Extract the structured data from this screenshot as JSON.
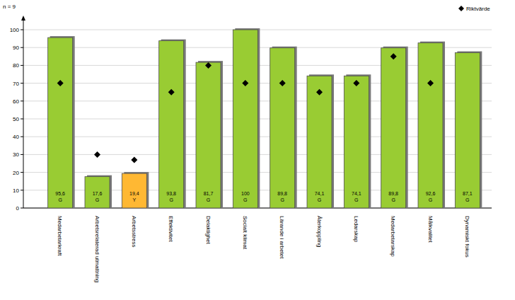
{
  "chart_data": {
    "type": "bar",
    "subtitle": "n = 9",
    "categories": [
      "Medarbetarkraft",
      "Arbetsrelaterad utmattning",
      "Arbetsstress",
      "Effektivitet",
      "Delaktighet",
      "Socialt klimat",
      "Lärande i arbetet",
      "Återkoppling",
      "Ledarskap",
      "Medarbetarskap",
      "Målkvalitet",
      "Dynamiskt fokus"
    ],
    "series": [
      {
        "type": "bar",
        "colors": [
          "#99cc33",
          "#99cc33",
          "#ffb833",
          "#99cc33",
          "#99cc33",
          "#99cc33",
          "#99cc33",
          "#99cc33",
          "#99cc33",
          "#99cc33",
          "#99cc33",
          "#99cc33"
        ],
        "values": [
          95.6,
          17.6,
          19.4,
          93.8,
          81.7,
          100,
          89.8,
          74.1,
          74.1,
          89.8,
          92.6,
          87.1
        ],
        "value_labels": [
          "95,6",
          "17,6",
          "19,4",
          "93,8",
          "81,7",
          "100",
          "89,8",
          "74,1",
          "74,1",
          "89,8",
          "92,6",
          "87,1"
        ],
        "grades": [
          "G",
          "G",
          "Y",
          "G",
          "G",
          "G",
          "G",
          "G",
          "G",
          "G",
          "G",
          "G"
        ]
      },
      {
        "name": "Riktvärde",
        "type": "scatter",
        "marker": "diamond",
        "color": "#000000",
        "values": [
          70,
          30,
          27,
          65,
          80,
          70,
          70,
          65,
          70,
          85,
          70,
          null
        ]
      }
    ],
    "data_labels": true,
    "legend": "top-right",
    "ylim": [
      0,
      100
    ],
    "yticks": [
      0,
      10,
      20,
      30,
      40,
      50,
      60,
      70,
      80,
      90,
      100
    ],
    "grid": true
  }
}
